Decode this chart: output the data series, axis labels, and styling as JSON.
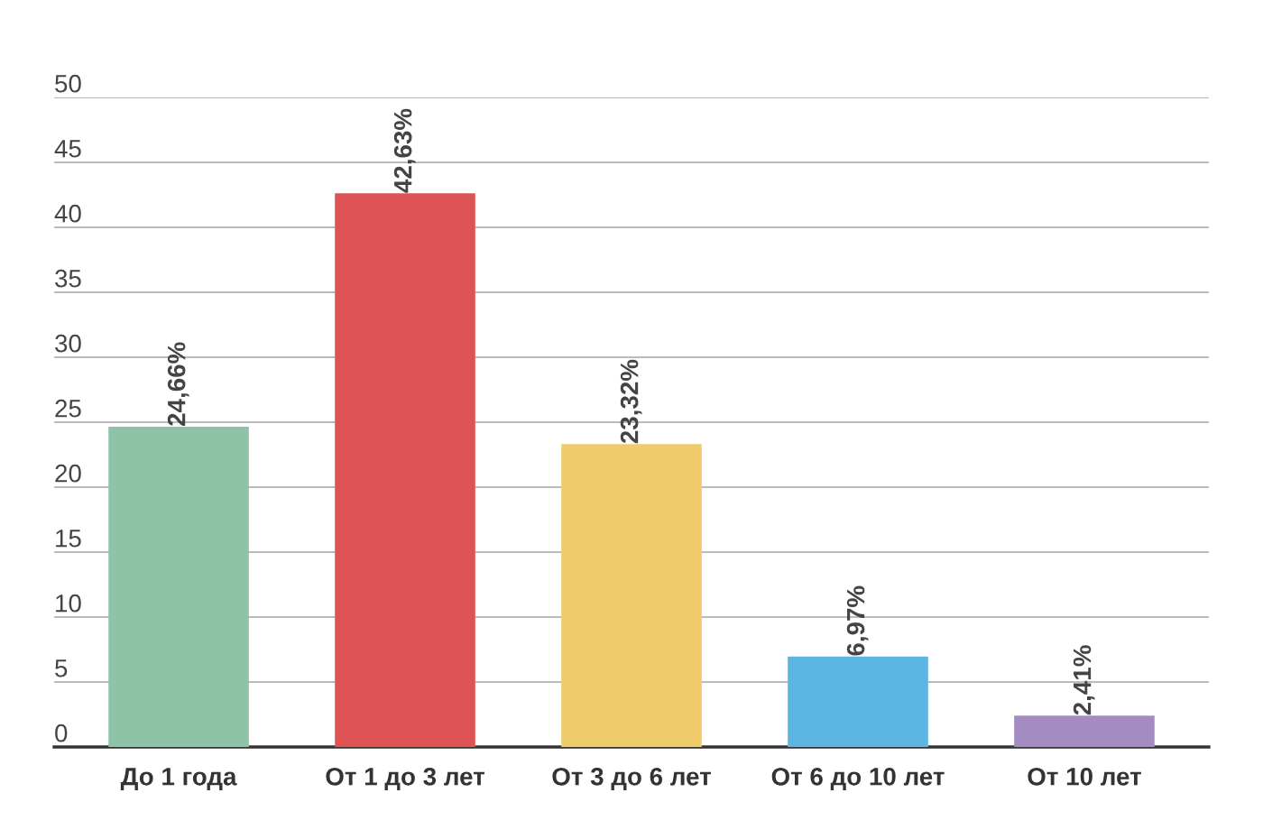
{
  "chart_data": {
    "type": "bar",
    "categories": [
      "До 1 года",
      "От 1 до 3 лет",
      "От 3 до 6 лет",
      "От 6 до 10 лет",
      "От 10 лет"
    ],
    "values": [
      24.66,
      42.63,
      23.32,
      6.97,
      2.41
    ],
    "colors": [
      "#8fc3a8",
      "#de5454",
      "#f0cb6a",
      "#5db5e3",
      "#a48cc2"
    ],
    "value_labels": [
      "24,66%",
      "42,63%",
      "23,32%",
      "6,97%",
      "2,41%"
    ],
    "ylim": [
      0,
      50
    ],
    "yticks": [
      0,
      5,
      10,
      15,
      20,
      25,
      30,
      35,
      40,
      45,
      50
    ],
    "grid": "y",
    "legend": false
  }
}
